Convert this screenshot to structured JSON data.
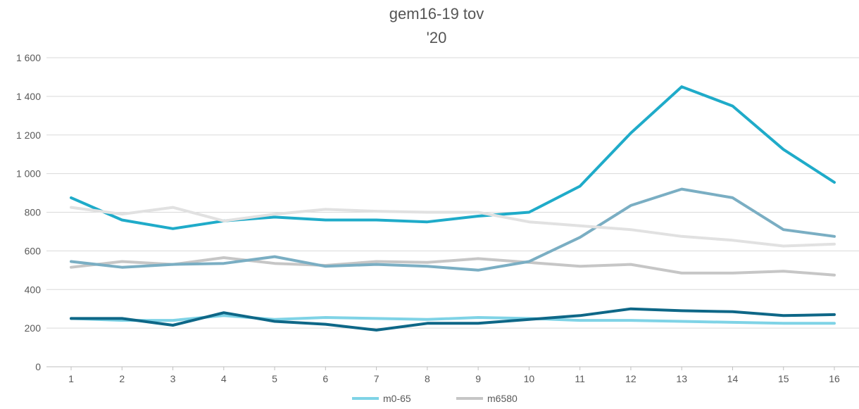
{
  "chart_data": {
    "type": "line",
    "title": "gem16-19 tov",
    "subtitle": "'20",
    "x": [
      1,
      2,
      3,
      4,
      5,
      6,
      7,
      8,
      9,
      10,
      11,
      12,
      13,
      14,
      15,
      16
    ],
    "x_tick_labels": [
      "1",
      "2",
      "3",
      "4",
      "5",
      "6",
      "7",
      "8",
      "9",
      "10",
      "11",
      "12",
      "13",
      "14",
      "15",
      "16"
    ],
    "ylim": [
      0,
      1600
    ],
    "y_ticks": [
      0,
      200,
      400,
      600,
      800,
      1000,
      1200,
      1400,
      1600
    ],
    "y_tick_labels": [
      "0",
      "200",
      "400",
      "600",
      "800",
      "1 000",
      "1 200",
      "1 400",
      "1 600"
    ],
    "grid": true,
    "legend_position": "bottom",
    "series": [
      {
        "name": "m0-65",
        "color": "#7fd3e6",
        "values": [
          250,
          240,
          240,
          265,
          245,
          255,
          250,
          245,
          255,
          250,
          240,
          240,
          235,
          230,
          225,
          225
        ]
      },
      {
        "name": "m6580",
        "color": "#c6c6c6",
        "values": [
          515,
          545,
          530,
          565,
          535,
          525,
          545,
          540,
          560,
          540,
          520,
          530,
          485,
          485,
          495,
          475
        ]
      },
      {
        "color": "#1fabc9",
        "values": [
          875,
          760,
          715,
          755,
          775,
          760,
          760,
          750,
          780,
          800,
          935,
          1210,
          1450,
          1350,
          1125,
          955
        ]
      },
      {
        "color": "#7aaec3",
        "values": [
          545,
          515,
          530,
          535,
          570,
          520,
          530,
          520,
          500,
          545,
          670,
          835,
          920,
          875,
          710,
          675
        ]
      },
      {
        "color": "#e1e1e1",
        "values": [
          825,
          790,
          825,
          755,
          790,
          815,
          805,
          800,
          800,
          750,
          730,
          710,
          675,
          655,
          625,
          635
        ]
      },
      {
        "color": "#0e6787",
        "values": [
          250,
          250,
          215,
          280,
          235,
          220,
          190,
          225,
          225,
          245,
          265,
          300,
          290,
          285,
          265,
          270
        ]
      }
    ],
    "legend": [
      {
        "name": "m0-65",
        "color": "#7fd3e6"
      },
      {
        "name": "m6580",
        "color": "#c6c6c6"
      }
    ]
  }
}
